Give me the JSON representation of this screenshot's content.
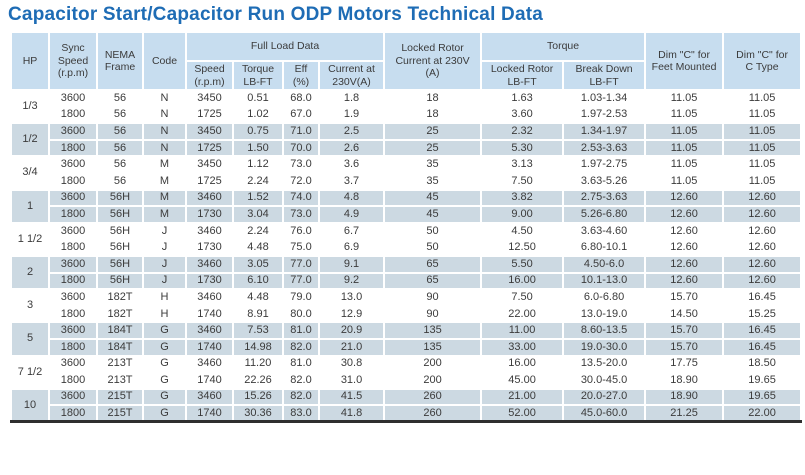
{
  "title": "Capacitor Start/Capacitor Run ODP Motors Technical Data",
  "colors": {
    "title_blue": "#1e6cb5",
    "header_bg": "#c7ddef",
    "shaded_row_bg": "#ccd9e2",
    "bottom_border": "#2f2f2f"
  },
  "table": {
    "headers": {
      "hp": "HP",
      "sync_speed": "Sync\nSpeed\n(r.p.m)",
      "nema_frame": "NEMA\nFrame",
      "code": "Code",
      "full_load_data": "Full Load Data",
      "speed": "Speed\n(r.p.m)",
      "torque_lb_ft": "Torque\nLB-FT",
      "eff": "Eff\n(%)",
      "current_230v": "Current at\n230V(A)",
      "locked_rotor_current": "Locked Rotor\nCurrent at 230V\n(A)",
      "torque": "Torque",
      "locked_rotor_lb_ft": "Locked Rotor\nLB-FT",
      "break_down_lb_ft": "Break Down\nLB-FT",
      "dim_c_feet_mounted": "Dim \"C\" for\nFeet Mounted",
      "dim_c_c_type": "Dim \"C\" for\nC Type"
    },
    "groups": [
      {
        "hp": "1/3",
        "shaded": false,
        "rows": [
          [
            "3600",
            "56",
            "N",
            "3450",
            "0.51",
            "68.0",
            "1.8",
            "18",
            "1.63",
            "1.03-1.34",
            "11.05",
            "11.05"
          ],
          [
            "1800",
            "56",
            "N",
            "1725",
            "1.02",
            "67.0",
            "1.9",
            "18",
            "3.60",
            "1.97-2.53",
            "11.05",
            "11.05"
          ]
        ]
      },
      {
        "hp": "1/2",
        "shaded": true,
        "rows": [
          [
            "3600",
            "56",
            "N",
            "3450",
            "0.75",
            "71.0",
            "2.5",
            "25",
            "2.32",
            "1.34-1.97",
            "11.05",
            "11.05"
          ],
          [
            "1800",
            "56",
            "N",
            "1725",
            "1.50",
            "70.0",
            "2.6",
            "25",
            "5.30",
            "2.53-3.63",
            "11.05",
            "11.05"
          ]
        ]
      },
      {
        "hp": "3/4",
        "shaded": false,
        "rows": [
          [
            "3600",
            "56",
            "M",
            "3450",
            "1.12",
            "73.0",
            "3.6",
            "35",
            "3.13",
            "1.97-2.75",
            "11.05",
            "11.05"
          ],
          [
            "1800",
            "56",
            "M",
            "1725",
            "2.24",
            "72.0",
            "3.7",
            "35",
            "7.50",
            "3.63-5.26",
            "11.05",
            "11.05"
          ]
        ]
      },
      {
        "hp": "1",
        "shaded": true,
        "rows": [
          [
            "3600",
            "56H",
            "M",
            "3460",
            "1.52",
            "74.0",
            "4.8",
            "45",
            "3.82",
            "2.75-3.63",
            "12.60",
            "12.60"
          ],
          [
            "1800",
            "56H",
            "M",
            "1730",
            "3.04",
            "73.0",
            "4.9",
            "45",
            "9.00",
            "5.26-6.80",
            "12.60",
            "12.60"
          ]
        ]
      },
      {
        "hp": "1 1/2",
        "shaded": false,
        "rows": [
          [
            "3600",
            "56H",
            "J",
            "3460",
            "2.24",
            "76.0",
            "6.7",
            "50",
            "4.50",
            "3.63-4.60",
            "12.60",
            "12.60"
          ],
          [
            "1800",
            "56H",
            "J",
            "1730",
            "4.48",
            "75.0",
            "6.9",
            "50",
            "12.50",
            "6.80-10.1",
            "12.60",
            "12.60"
          ]
        ]
      },
      {
        "hp": "2",
        "shaded": true,
        "rows": [
          [
            "3600",
            "56H",
            "J",
            "3460",
            "3.05",
            "77.0",
            "9.1",
            "65",
            "5.50",
            "4.50-6.0",
            "12.60",
            "12.60"
          ],
          [
            "1800",
            "56H",
            "J",
            "1730",
            "6.10",
            "77.0",
            "9.2",
            "65",
            "16.00",
            "10.1-13.0",
            "12.60",
            "12.60"
          ]
        ]
      },
      {
        "hp": "3",
        "shaded": false,
        "rows": [
          [
            "3600",
            "182T",
            "H",
            "3460",
            "4.48",
            "79.0",
            "13.0",
            "90",
            "7.50",
            "6.0-6.80",
            "15.70",
            "16.45"
          ],
          [
            "1800",
            "182T",
            "H",
            "1740",
            "8.91",
            "80.0",
            "12.9",
            "90",
            "22.00",
            "13.0-19.0",
            "14.50",
            "15.25"
          ]
        ]
      },
      {
        "hp": "5",
        "shaded": true,
        "rows": [
          [
            "3600",
            "184T",
            "G",
            "3460",
            "7.53",
            "81.0",
            "20.9",
            "135",
            "11.00",
            "8.60-13.5",
            "15.70",
            "16.45"
          ],
          [
            "1800",
            "184T",
            "G",
            "1740",
            "14.98",
            "82.0",
            "21.0",
            "135",
            "33.00",
            "19.0-30.0",
            "15.70",
            "16.45"
          ]
        ]
      },
      {
        "hp": "7 1/2",
        "shaded": false,
        "rows": [
          [
            "3600",
            "213T",
            "G",
            "3460",
            "11.20",
            "81.0",
            "30.8",
            "200",
            "16.00",
            "13.5-20.0",
            "17.75",
            "18.50"
          ],
          [
            "1800",
            "213T",
            "G",
            "1740",
            "22.26",
            "82.0",
            "31.0",
            "200",
            "45.00",
            "30.0-45.0",
            "18.90",
            "19.65"
          ]
        ]
      },
      {
        "hp": "10",
        "shaded": true,
        "rows": [
          [
            "3600",
            "215T",
            "G",
            "3460",
            "15.26",
            "82.0",
            "41.5",
            "260",
            "21.00",
            "20.0-27.0",
            "18.90",
            "19.65"
          ],
          [
            "1800",
            "215T",
            "G",
            "1740",
            "30.36",
            "83.0",
            "41.8",
            "260",
            "52.00",
            "45.0-60.0",
            "21.25",
            "22.00"
          ]
        ]
      }
    ]
  }
}
